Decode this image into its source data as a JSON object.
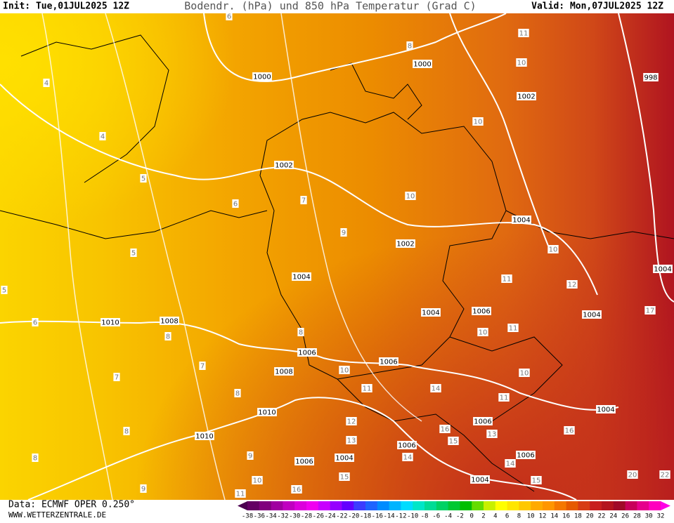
{
  "header": {
    "init": "Init: Tue,01JUL2025 12Z",
    "title": "Bodendr. (hPa) und 850 hPa Temperatur (Grad C)",
    "valid": "Valid: Mon,07JUL2025 12Z"
  },
  "footer": {
    "data": "Data: ECMWF OPER 0.250°",
    "site": "WWW.WETTERZENTRALE.DE"
  },
  "legend": {
    "labels": [
      -38,
      -36,
      -34,
      -32,
      -30,
      -28,
      -26,
      -24,
      -22,
      -20,
      -18,
      -16,
      -14,
      -12,
      -10,
      -8,
      -6,
      -4,
      -2,
      0,
      2,
      4,
      6,
      8,
      10,
      12,
      14,
      16,
      18,
      20,
      22,
      24,
      26,
      28,
      30,
      32
    ],
    "colors": [
      "#4b0050",
      "#640064",
      "#80007d",
      "#a000a0",
      "#c000c0",
      "#dc00dc",
      "#f000f0",
      "#c800ff",
      "#9600ff",
      "#6400ff",
      "#3c3cff",
      "#1e64ff",
      "#008cff",
      "#00b4ff",
      "#00dcff",
      "#00e6c8",
      "#00dc96",
      "#00d264",
      "#00c832",
      "#00be00",
      "#64dc00",
      "#c8f000",
      "#ffff00",
      "#ffe600",
      "#ffc800",
      "#ffaa00",
      "#ff9600",
      "#f57800",
      "#e65a00",
      "#d73c14",
      "#c81e1e",
      "#b4141e",
      "#a00a28",
      "#c8005a",
      "#e6008c",
      "#ff00be",
      "#ff00e6"
    ]
  },
  "isobar_labels": [
    1000,
    1000,
    1002,
    998,
    1002,
    1002,
    1004,
    1004,
    1004,
    1006,
    1004,
    1010,
    1008,
    1006,
    1006,
    1008,
    1010,
    1010,
    1004,
    1006,
    1006,
    1006,
    1004,
    1006,
    1004,
    1004
  ],
  "temperature_labels": [
    11,
    10,
    10,
    10,
    10,
    11,
    12,
    17,
    11,
    10,
    10,
    14,
    11,
    12,
    13,
    16,
    15,
    16,
    13,
    14,
    14,
    15,
    15,
    20,
    22,
    11,
    10,
    16,
    4,
    5,
    5,
    5,
    6,
    6,
    7,
    9,
    8,
    8,
    7,
    7,
    8,
    8,
    8,
    9,
    9,
    6,
    4,
    8,
    10,
    11
  ]
}
